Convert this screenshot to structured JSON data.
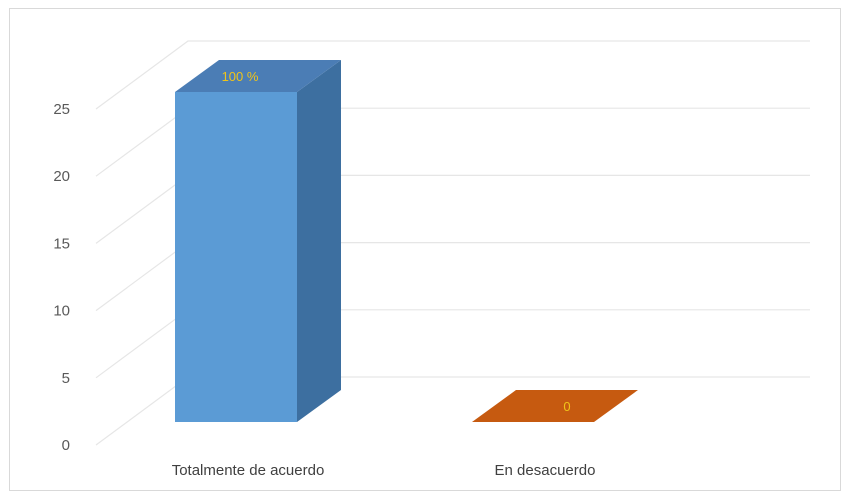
{
  "chart_data": {
    "type": "bar",
    "categories": [
      "Totalmente de acuerdo",
      "En  desacuerdo"
    ],
    "values": [
      25,
      0
    ],
    "data_labels": [
      "100 %",
      "0"
    ],
    "ylim": [
      0,
      25
    ],
    "yticks": [
      0,
      5,
      10,
      15,
      20,
      25
    ],
    "title": "",
    "xlabel": "",
    "ylabel": "",
    "grid": true,
    "legend": "none",
    "colors": {
      "bar_front": [
        "#5b9bd5",
        "#c55a11"
      ],
      "bar_side": [
        "#3d6fa0",
        "#9a4a16"
      ],
      "bar_top": [
        "#4b7db5",
        "#c65a10"
      ],
      "gridline": "#e6e6e6"
    }
  }
}
